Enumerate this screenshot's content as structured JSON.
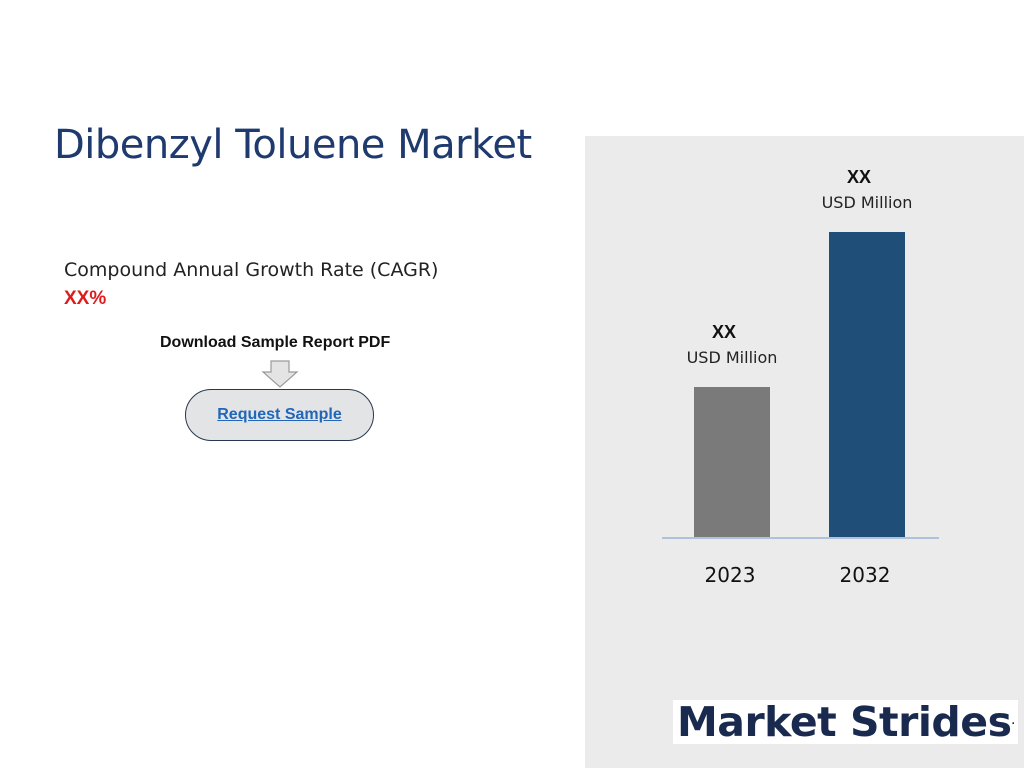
{
  "title": "Dibenzyl Toluene Market",
  "cagr": {
    "label": "Compound Annual Growth Rate (CAGR)",
    "value": "XX%"
  },
  "download": {
    "label": "Download Sample Report PDF",
    "button_label": "Request Sample",
    "arrow_icon": "down-arrow-icon"
  },
  "colors": {
    "title": "#1f3a6e",
    "cagr_value": "#e01b1b",
    "bar_2023": "#7a7a7a",
    "bar_2032": "#1f4e79",
    "panel_bg": "#ebebeb",
    "button_bg": "#e3e4e6",
    "link": "#2166b8"
  },
  "chart_data": {
    "type": "bar",
    "categories": [
      "2023",
      "2032"
    ],
    "values": [
      150,
      305
    ],
    "value_labels": [
      "XX",
      "XX"
    ],
    "unit_labels": [
      "USD Million",
      "USD Million"
    ],
    "ylim": [
      0,
      340
    ],
    "grid": false,
    "colors": [
      "#7a7a7a",
      "#1f4e79"
    ]
  },
  "logo": {
    "text": "Market Strides",
    "mark": "."
  }
}
